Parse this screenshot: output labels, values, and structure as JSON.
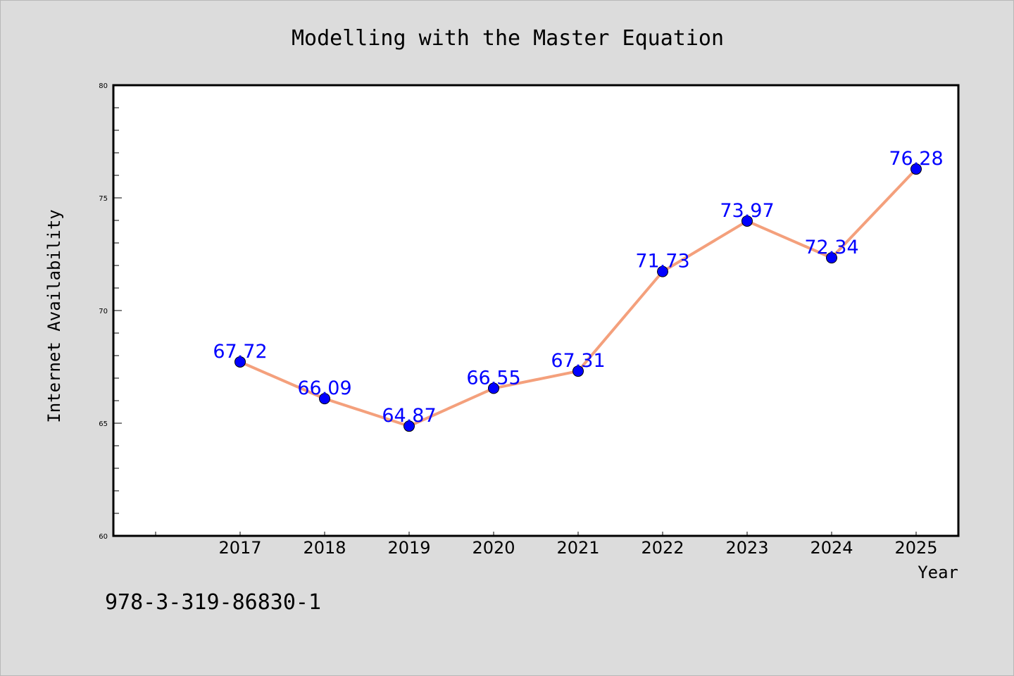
{
  "footer_text": "978-3-319-86830-1",
  "colors": {
    "background": "#dcdcdc",
    "plot_background": "#ffffff",
    "line": "#f4a07c",
    "marker": "#0000ff",
    "data_label": "#0000ff"
  },
  "chart_data": {
    "type": "line",
    "title": "Modelling with the Master Equation",
    "xlabel": "Year",
    "ylabel": "Internet Availability",
    "categories": [
      "2017",
      "2018",
      "2019",
      "2020",
      "2021",
      "2022",
      "2023",
      "2024",
      "2025"
    ],
    "series": [
      {
        "values": [
          67.72,
          66.09,
          64.87,
          66.55,
          67.31,
          71.73,
          73.97,
          72.34,
          76.28
        ],
        "labels": [
          "67.72",
          "66.09",
          "64.87",
          "66.55",
          "67.31",
          "71.73",
          "73.97",
          "72.34",
          "76.28"
        ]
      }
    ],
    "ylim": [
      60,
      80
    ],
    "yticks": [
      "60",
      "65",
      "70",
      "75",
      "80"
    ],
    "grid": false,
    "legend": "none",
    "markers": "circle"
  }
}
